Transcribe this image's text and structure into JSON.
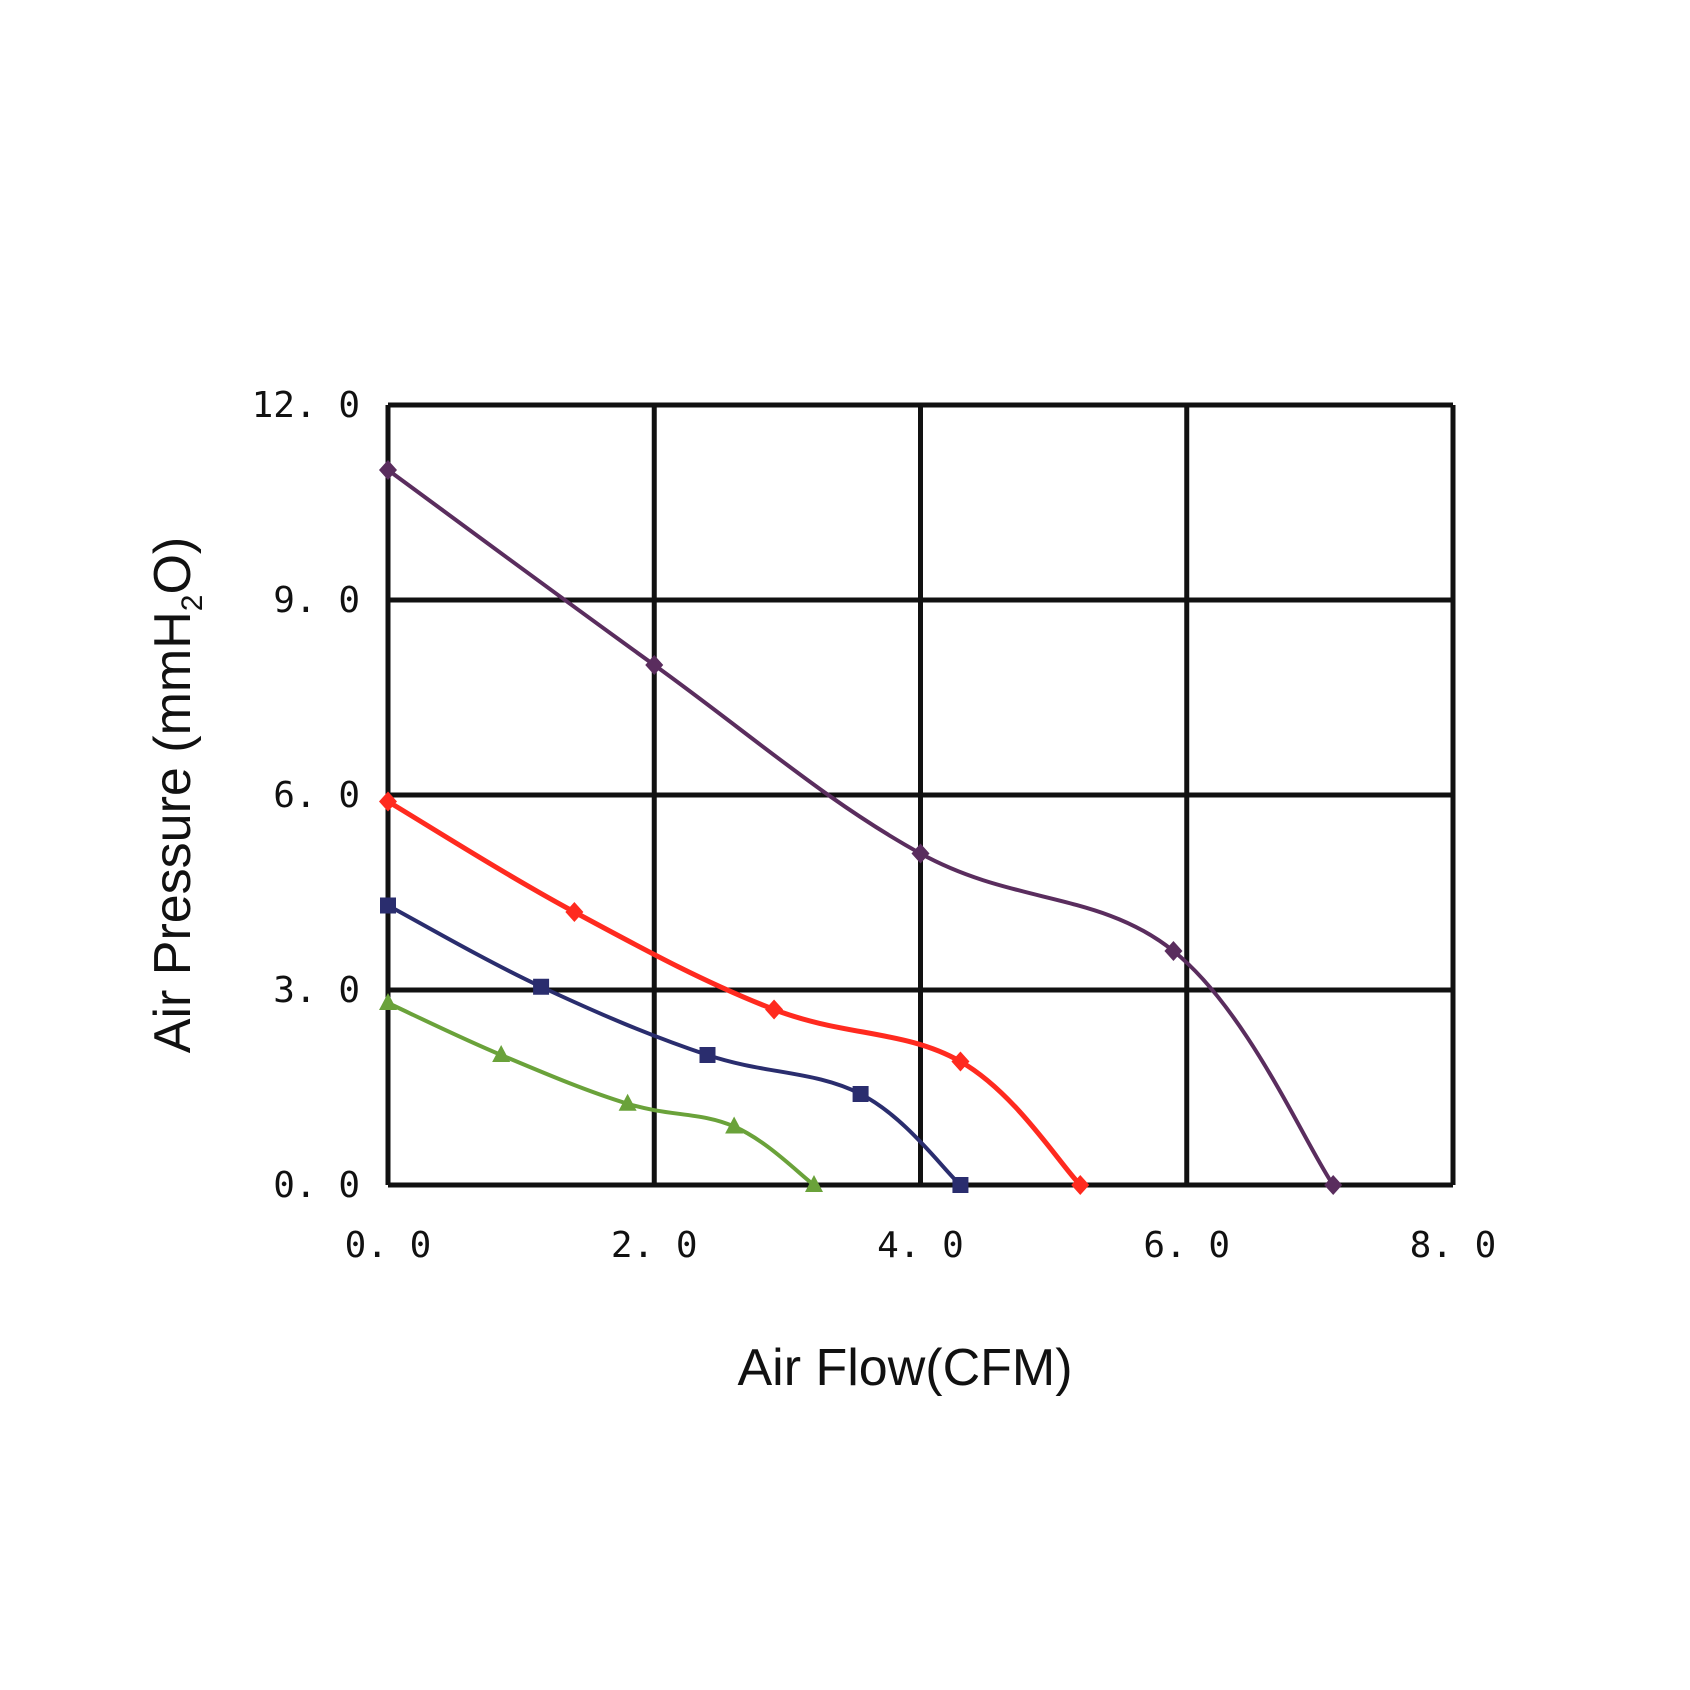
{
  "chart_data": {
    "type": "line",
    "title": "",
    "xlabel": "Air Flow(CFM)",
    "ylabel_parts": {
      "pre": "Air Pressure (mmH",
      "sub": "2",
      "post": "O)"
    },
    "xlim": [
      0,
      8
    ],
    "ylim": [
      0,
      12
    ],
    "x_ticks": [
      "0. 0",
      "2. 0",
      "4. 0",
      "6. 0",
      "8. 0"
    ],
    "y_ticks": [
      "0. 0",
      "3. 0",
      "6. 0",
      "9. 0",
      "12. 0"
    ],
    "grid": true,
    "legend": "none",
    "series": [
      {
        "color": "#5a2d5e",
        "marker": "diamond",
        "points": [
          [
            0,
            11
          ],
          [
            2.0,
            8.0
          ],
          [
            4.0,
            5.1
          ],
          [
            5.9,
            3.6
          ],
          [
            7.1,
            0
          ]
        ]
      },
      {
        "color": "#ff2a1f",
        "marker": "diamond",
        "points": [
          [
            0,
            5.9
          ],
          [
            1.4,
            4.2
          ],
          [
            2.9,
            2.7
          ],
          [
            4.3,
            1.9
          ],
          [
            5.2,
            0
          ]
        ]
      },
      {
        "color": "#2a2d6e",
        "marker": "square",
        "points": [
          [
            0,
            4.3
          ],
          [
            1.15,
            3.05
          ],
          [
            2.4,
            2.0
          ],
          [
            3.55,
            1.4
          ],
          [
            4.3,
            0
          ]
        ]
      },
      {
        "color": "#6aa23a",
        "marker": "triangle",
        "points": [
          [
            0,
            2.8
          ],
          [
            0.85,
            2.0
          ],
          [
            1.8,
            1.25
          ],
          [
            2.6,
            0.9
          ],
          [
            3.2,
            0
          ]
        ]
      }
    ]
  }
}
